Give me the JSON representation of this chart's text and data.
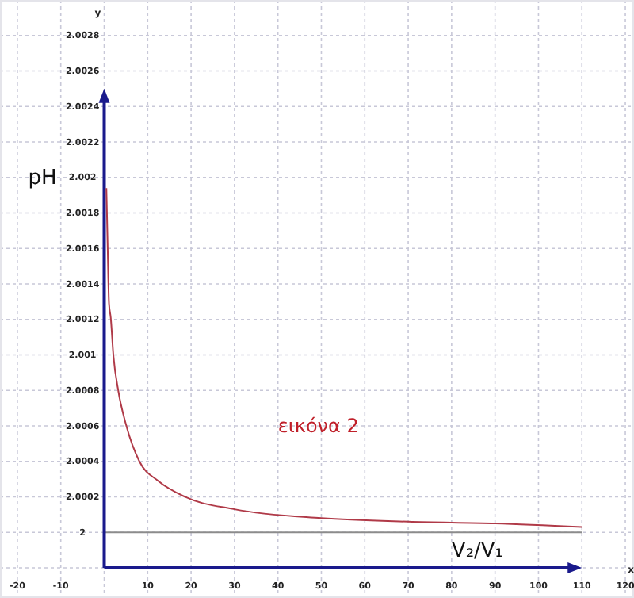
{
  "chart_data": {
    "type": "line",
    "xlabel": "V₂/V₁",
    "ylabel": "pH",
    "x": [
      0.5,
      0.8,
      1.1,
      1.5,
      2.1,
      3.3,
      5.1,
      8.1,
      12.4,
      18.6,
      30,
      50,
      70,
      90,
      110
    ],
    "series": [
      {
        "color": "#b03a48",
        "values": [
          2.00194,
          2.0016,
          2.00129,
          2.00121,
          2.001,
          2.00079,
          2.0006,
          2.0004,
          2.00029,
          2.0002,
          2.00013,
          2.00008,
          2.00006,
          2.00005,
          2.00003
        ]
      }
    ],
    "xlim": [
      -24,
      122
    ],
    "ylim": [
      1.99963,
      2.003
    ],
    "xticks": [
      -20,
      -10,
      10,
      20,
      30,
      40,
      50,
      60,
      70,
      80,
      90,
      100,
      110,
      120
    ],
    "yticks": [
      2,
      2.0002,
      2.0004,
      2.0006,
      2.0008,
      2.001,
      2.0012,
      2.0014,
      2.0016,
      2.0018,
      2.002,
      2.0022,
      2.0024,
      2.0026,
      2.0028
    ],
    "grid": true,
    "marker": "none",
    "line_style": "solid",
    "ref_lines": [
      {
        "axis": "y",
        "value": 2,
        "color": "#8c8c8c"
      }
    ],
    "annotations": [
      "εικόνα 2",
      "x",
      "y"
    ]
  }
}
